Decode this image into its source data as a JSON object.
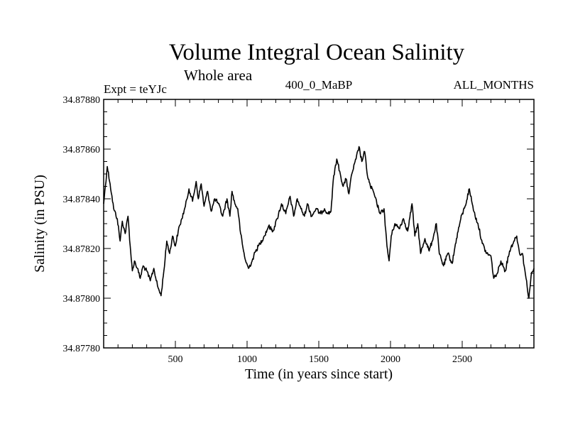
{
  "chart_data": {
    "type": "line",
    "title": "Volume Integral Ocean Salinity",
    "subtitle": "Whole area",
    "annotations": {
      "left": "Expt = teYJc",
      "center": "400_0_MaBP",
      "right": "ALL_MONTHS"
    },
    "xlabel": "Time (in years since start)",
    "ylabel": "Salinity (in PSU)",
    "xlim": [
      0,
      3000
    ],
    "ylim": [
      34.8778,
      34.8788
    ],
    "xticks": [
      500,
      1000,
      1500,
      2000,
      2500
    ],
    "xtick_labels": [
      "500",
      "1000",
      "1500",
      "2000",
      "2500"
    ],
    "yticks": [
      34.8778,
      34.878,
      34.8782,
      34.8784,
      34.8786,
      34.8788
    ],
    "ytick_labels": [
      "34.87780",
      "34.87800",
      "34.87820",
      "34.87840",
      "34.87860",
      "34.87880"
    ],
    "grid": false,
    "series": [
      {
        "name": "Salinity",
        "x": [
          0,
          25,
          45,
          70,
          95,
          115,
          130,
          150,
          170,
          185,
          200,
          215,
          235,
          255,
          275,
          300,
          325,
          350,
          375,
          400,
          420,
          440,
          460,
          480,
          500,
          520,
          545,
          570,
          595,
          620,
          645,
          660,
          680,
          700,
          725,
          750,
          775,
          800,
          830,
          860,
          880,
          895,
          915,
          935,
          955,
          975,
          990,
          1010,
          1035,
          1060,
          1090,
          1120,
          1150,
          1180,
          1210,
          1240,
          1270,
          1300,
          1325,
          1350,
          1375,
          1400,
          1420,
          1450,
          1480,
          1510,
          1540,
          1565,
          1585,
          1600,
          1625,
          1650,
          1670,
          1690,
          1710,
          1730,
          1760,
          1780,
          1800,
          1820,
          1840,
          1860,
          1880,
          1905,
          1930,
          1955,
          1975,
          1990,
          2005,
          2030,
          2060,
          2090,
          2120,
          2150,
          2170,
          2190,
          2210,
          2240,
          2270,
          2300,
          2320,
          2340,
          2370,
          2400,
          2430,
          2460,
          2490,
          2520,
          2550,
          2570,
          2590,
          2610,
          2640,
          2670,
          2700,
          2720,
          2745,
          2770,
          2800,
          2830,
          2860,
          2880,
          2900,
          2920,
          2945,
          2965,
          2980,
          3000
        ],
        "values": [
          34.87838,
          34.87853,
          34.87846,
          34.87836,
          34.87832,
          34.87823,
          34.87831,
          34.87826,
          34.87833,
          34.87821,
          34.87811,
          34.87815,
          34.87812,
          34.87808,
          34.87813,
          34.87811,
          34.87807,
          34.87812,
          34.87805,
          34.87801,
          34.87811,
          34.87823,
          34.87818,
          34.87825,
          34.87821,
          34.87827,
          34.87832,
          34.87837,
          34.87844,
          34.87839,
          34.87847,
          34.8784,
          34.87846,
          34.87837,
          34.87843,
          34.87835,
          34.8784,
          34.87838,
          34.87833,
          34.8784,
          34.87833,
          34.87843,
          34.87838,
          34.87836,
          34.87826,
          34.87819,
          34.87815,
          34.87812,
          34.87815,
          34.87819,
          34.87822,
          34.87825,
          34.87829,
          34.87827,
          34.87832,
          34.87838,
          34.87834,
          34.87841,
          34.87833,
          34.8784,
          34.87836,
          34.87833,
          34.87838,
          34.87833,
          34.87836,
          34.87834,
          34.87836,
          34.87834,
          34.87835,
          34.87847,
          34.87856,
          34.8785,
          34.87845,
          34.87848,
          34.87842,
          34.8785,
          34.87856,
          34.87861,
          34.87855,
          34.87859,
          34.87849,
          34.87845,
          34.87843,
          34.87838,
          34.87834,
          34.87836,
          34.87821,
          34.87815,
          34.87825,
          34.8783,
          34.87828,
          34.87832,
          34.87827,
          34.87838,
          34.87825,
          34.8783,
          34.87818,
          34.87824,
          34.87819,
          34.87825,
          34.8783,
          34.87818,
          34.87813,
          34.87818,
          34.87814,
          34.87824,
          34.87832,
          34.87837,
          34.87844,
          34.87838,
          34.87833,
          34.8783,
          34.87822,
          34.87818,
          34.87817,
          34.87808,
          34.8781,
          34.87815,
          34.87811,
          34.87819,
          34.87823,
          34.87825,
          34.87818,
          34.87818,
          34.87808,
          34.878,
          34.87809,
          34.87812
        ]
      }
    ]
  }
}
